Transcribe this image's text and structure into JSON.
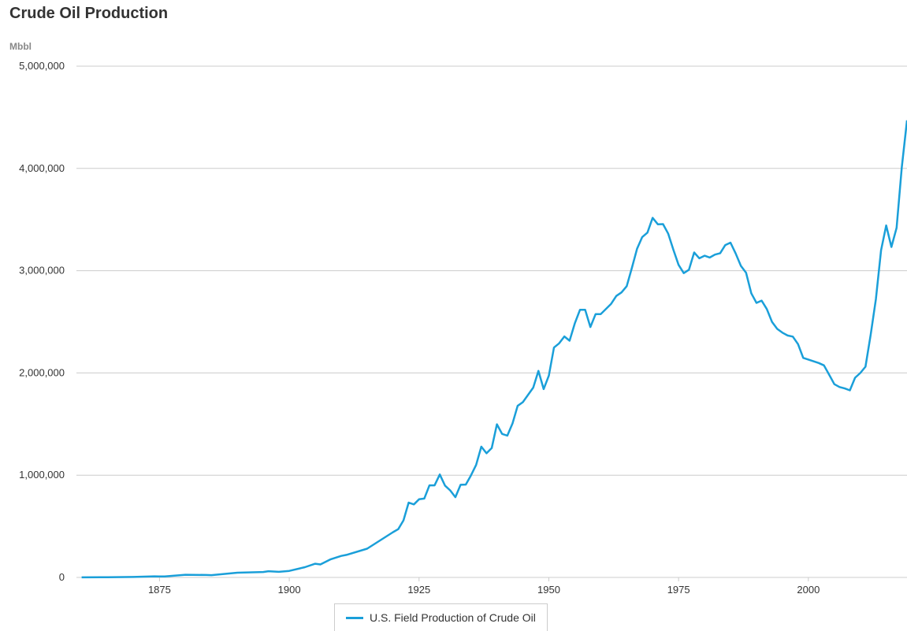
{
  "header": {
    "title": "Crude Oil Production",
    "unit_label": "Mbbl"
  },
  "colors": {
    "series": "#1a9fd9",
    "grid": "#cccccc",
    "text": "#333333"
  },
  "chart_data": {
    "type": "line",
    "title": "Crude Oil Production",
    "ylabel": "Mbbl",
    "xlabel": "",
    "xlim": [
      1859,
      2019
    ],
    "ylim": [
      0,
      5000000
    ],
    "x_ticks": [
      1875,
      1900,
      1925,
      1950,
      1975,
      2000
    ],
    "y_ticks": [
      0,
      1000000,
      2000000,
      3000000,
      4000000,
      5000000
    ],
    "y_tick_labels": [
      "0",
      "1,000,000",
      "2,000,000",
      "3,000,000",
      "4,000,000",
      "5,000,000"
    ],
    "grid": true,
    "legend_position": "bottom-center",
    "series": [
      {
        "name": "U.S. Field Production of Crude Oil",
        "x": [
          1860,
          1865,
          1870,
          1874,
          1875,
          1876,
          1880,
          1884,
          1885,
          1890,
          1895,
          1896,
          1898,
          1900,
          1903,
          1905,
          1906,
          1908,
          1910,
          1911,
          1915,
          1920,
          1921,
          1922,
          1923,
          1924,
          1925,
          1926,
          1927,
          1928,
          1929,
          1930,
          1931,
          1932,
          1933,
          1934,
          1935,
          1936,
          1937,
          1938,
          1939,
          1940,
          1941,
          1942,
          1943,
          1944,
          1945,
          1947,
          1948,
          1949,
          1950,
          1951,
          1952,
          1953,
          1954,
          1955,
          1956,
          1957,
          1958,
          1959,
          1960,
          1962,
          1963,
          1964,
          1965,
          1966,
          1967,
          1968,
          1969,
          1970,
          1971,
          1972,
          1973,
          1974,
          1975,
          1976,
          1977,
          1978,
          1979,
          1980,
          1981,
          1982,
          1983,
          1984,
          1985,
          1986,
          1987,
          1988,
          1989,
          1990,
          1991,
          1992,
          1993,
          1994,
          1995,
          1996,
          1997,
          1998,
          1999,
          2000,
          2002,
          2003,
          2004,
          2005,
          2006,
          2007,
          2008,
          2009,
          2010,
          2011,
          2012,
          2013,
          2014,
          2015,
          2016,
          2017,
          2018,
          2019
        ],
        "y": [
          500,
          2500,
          5000,
          11000,
          10000,
          9000,
          26000,
          24000,
          22000,
          46000,
          53000,
          61000,
          55000,
          64000,
          100000,
          134000,
          127000,
          178000,
          210000,
          220000,
          281000,
          443000,
          472000,
          558000,
          732000,
          714000,
          764000,
          771000,
          901000,
          901000,
          1007000,
          898000,
          851000,
          785000,
          906000,
          908000,
          997000,
          1100000,
          1279000,
          1214000,
          1265000,
          1498000,
          1404000,
          1387000,
          1506000,
          1678000,
          1714000,
          1857000,
          2020000,
          1842000,
          1974000,
          2248000,
          2290000,
          2357000,
          2315000,
          2484000,
          2617000,
          2617000,
          2449000,
          2575000,
          2575000,
          2676000,
          2753000,
          2787000,
          2848000,
          3028000,
          3216000,
          3329000,
          3372000,
          3517000,
          3454000,
          3455000,
          3361000,
          3203000,
          3057000,
          2976000,
          3009000,
          3178000,
          3121000,
          3146000,
          3129000,
          3157000,
          3171000,
          3250000,
          3274000,
          3168000,
          3047000,
          2979000,
          2779000,
          2685000,
          2707000,
          2625000,
          2499000,
          2431000,
          2394000,
          2366000,
          2355000,
          2282000,
          2147000,
          2131000,
          2097000,
          2074000,
          1983000,
          1890000,
          1862000,
          1848000,
          1830000,
          1953000,
          1999000,
          2061000,
          2374000,
          2720000,
          3200000,
          3442000,
          3232000,
          3419000,
          4012000,
          4470000
        ]
      }
    ]
  }
}
